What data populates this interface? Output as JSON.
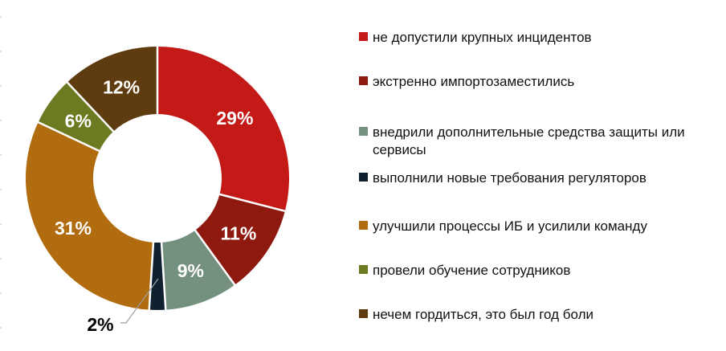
{
  "chart_data": {
    "type": "pie",
    "subtype": "donut",
    "title": "",
    "legend_position": "right",
    "start_angle_deg": 0,
    "clockwise": true,
    "inner_radius_ratio": 0.49,
    "categories": [
      "не допустили крупных инцидентов",
      "экстренно импортозаместились",
      "внедрили дополнительные средства защиты или сервисы",
      "выполнили новые требования регуляторов",
      "улучшили процессы ИБ и усилили команду",
      "провели обучение сотрудников",
      "нечем гордиться, это был год боли"
    ],
    "values": [
      29,
      11,
      9,
      2,
      31,
      6,
      12
    ],
    "data_labels": [
      "29%",
      "11%",
      "9%",
      "2%",
      "31%",
      "6%",
      "12%"
    ],
    "colors": [
      "#c41a17",
      "#8e190f",
      "#74907e",
      "#0f2030",
      "#b06c0e",
      "#6c7a21",
      "#5f3b10"
    ],
    "callout": {
      "slice_index": 3,
      "label": "2%"
    }
  }
}
